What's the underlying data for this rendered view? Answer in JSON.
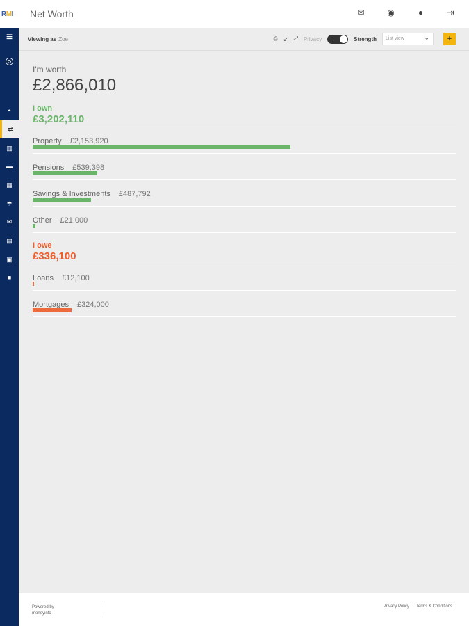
{
  "header": {
    "logo": "RMI",
    "title": "Net Worth",
    "icons": [
      "envelope-icon",
      "user-icon",
      "help-icon",
      "logout-icon"
    ]
  },
  "sidebar": {
    "items": [
      "menu-icon",
      "profile-icon",
      "dashboard-icon",
      "transfer-icon",
      "bank-icon",
      "folder-icon",
      "chart-icon",
      "umbrella-icon",
      "mail-icon",
      "document-icon",
      "calendar-icon",
      "briefcase-icon"
    ],
    "active": "transfer-icon"
  },
  "toolbar": {
    "viewing_label": "Viewing as",
    "viewing_name": "Zoe",
    "privacy": "Privacy",
    "privacy_on": true,
    "strength": "Strength",
    "view_select": "List view",
    "add": "+"
  },
  "summary": {
    "worth_label": "I'm worth",
    "worth_value": "£2,866,010"
  },
  "own": {
    "label": "I own",
    "total": "£3,202,110",
    "color": "#6bb56b",
    "items": [
      {
        "label": "Property",
        "value": "£2,153,920",
        "amount": 2153920
      },
      {
        "label": "Pensions",
        "value": "£539,398",
        "amount": 539398
      },
      {
        "label": "Savings & Investments",
        "value": "£487,792",
        "amount": 487792
      },
      {
        "label": "Other",
        "value": "£21,000",
        "amount": 21000
      }
    ]
  },
  "owe": {
    "label": "I owe",
    "total": "£336,100",
    "color": "#ec6a3c",
    "items": [
      {
        "label": "Loans",
        "value": "£12,100",
        "amount": 12100
      },
      {
        "label": "Mortgages",
        "value": "£324,000",
        "amount": 324000
      }
    ]
  },
  "footer": {
    "powered_by": "Powered by",
    "brand": "moneyinfo",
    "privacy_policy": "Privacy Policy",
    "terms": "Terms & Conditions"
  }
}
